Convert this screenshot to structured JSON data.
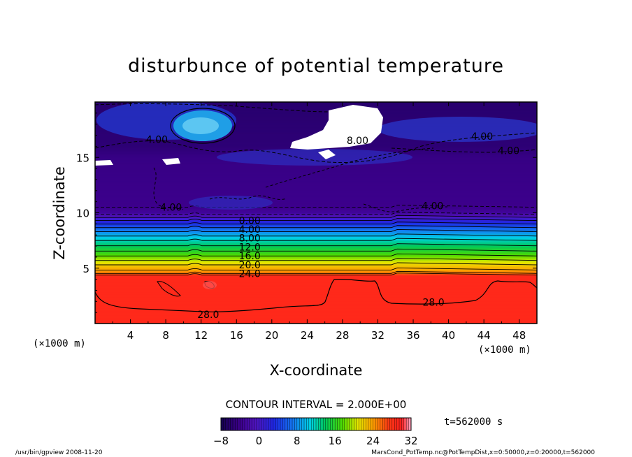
{
  "chart_data": {
    "type": "heatmap",
    "title": "disturbunce of potential temperature",
    "xlabel": "X-coordinate",
    "ylabel": "Z-coordinate",
    "x_unit": "(×1000 m)",
    "y_unit": "(×1000 m)",
    "xlim": [
      0,
      50
    ],
    "ylim": [
      0,
      20
    ],
    "x_ticks": [
      4,
      8,
      12,
      16,
      20,
      24,
      28,
      32,
      36,
      40,
      44,
      48
    ],
    "y_ticks": [
      5,
      10,
      15
    ],
    "contour_interval_text": "CONTOUR INTERVAL = 2.000E+00",
    "time_text": "t=562000 s",
    "colorbar": {
      "min": -8,
      "max": 32,
      "ticks": [
        -8,
        0,
        8,
        16,
        24,
        32
      ]
    },
    "profile": [
      {
        "z": 0,
        "v": 29
      },
      {
        "z": 4.3,
        "v": 29
      },
      {
        "z": 4.6,
        "v": 25
      },
      {
        "z": 5.3,
        "v": 22
      },
      {
        "z": 6.3,
        "v": 17
      },
      {
        "z": 7.5,
        "v": 12
      },
      {
        "z": 8.5,
        "v": 7
      },
      {
        "z": 9.3,
        "v": 2
      },
      {
        "z": 10,
        "v": -3
      },
      {
        "z": 10.5,
        "v": -4
      },
      {
        "z": 15,
        "v": -4.5
      },
      {
        "z": 16,
        "v": -5.5
      },
      {
        "z": 20,
        "v": -6
      }
    ],
    "contour_labels": [
      {
        "x": 7,
        "z": 16.3,
        "text": "4.00"
      },
      {
        "x": 8.6,
        "z": 10.2,
        "text": "4.00"
      },
      {
        "x": 29.7,
        "z": 16.2,
        "text": "8.00"
      },
      {
        "x": 43.8,
        "z": 16.6,
        "text": "4.00"
      },
      {
        "x": 46.8,
        "z": 15.3,
        "text": "4.00"
      },
      {
        "x": 38.2,
        "z": 10.3,
        "text": "4.00"
      },
      {
        "x": 17.5,
        "z": 9.0,
        "text": "0.00"
      },
      {
        "x": 17.5,
        "z": 8.2,
        "text": "4.00"
      },
      {
        "x": 17.5,
        "z": 7.4,
        "text": "8.00"
      },
      {
        "x": 17.5,
        "z": 6.6,
        "text": "12.0"
      },
      {
        "x": 17.5,
        "z": 5.8,
        "text": "16.0"
      },
      {
        "x": 17.5,
        "z": 5.0,
        "text": "20.0"
      },
      {
        "x": 17.5,
        "z": 4.2,
        "text": "24.0"
      },
      {
        "x": 12.8,
        "z": 0.5,
        "text": "28.0"
      },
      {
        "x": 38.3,
        "z": 1.6,
        "text": "28.0"
      }
    ]
  },
  "footer": {
    "left": "/usr/bin/gpview   2008-11-20",
    "right": "MarsCond_PotTemp.nc@PotTempDist,x=0:50000,z=0:20000,t=562000"
  }
}
